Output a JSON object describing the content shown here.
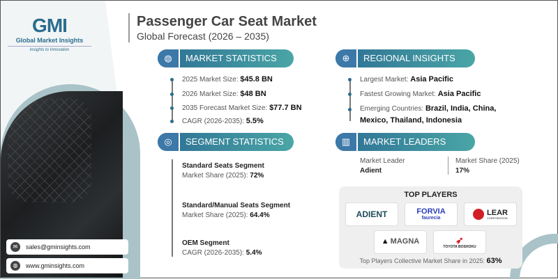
{
  "logo": {
    "mark": "GMI",
    "name": "Global Market Insights",
    "tagline": "Insights to Innovation"
  },
  "header": {
    "title": "Passenger Car Seat Market",
    "subtitle": "Global Forecast (2026 – 2035)"
  },
  "market_statistics": {
    "heading": "MARKET STATISTICS",
    "icon": "globe-chart-icon",
    "items": [
      {
        "label": "2025 Market Size: ",
        "value": "$45.8 BN"
      },
      {
        "label": "2026 Market Size: ",
        "value": "$48 BN"
      },
      {
        "label": "2035 Forecast Market Size: ",
        "value": "$77.7 BN"
      },
      {
        "label": "CAGR (2026-2035): ",
        "value": "5.5%"
      }
    ]
  },
  "segment_statistics": {
    "heading": "SEGMENT STATISTICS",
    "icon": "target-icon",
    "items": [
      {
        "title": "Standard Seats Segment",
        "label": "Market Share (2025): ",
        "value": "72%"
      },
      {
        "title": "Standard/Manual Seats Segment",
        "label": "Market Share (2025): ",
        "value": "64.4%"
      },
      {
        "title": "OEM Segment",
        "label": "CAGR (2026-2035): ",
        "value": "5.4%"
      }
    ]
  },
  "regional_insights": {
    "heading": "REGIONAL INSIGHTS",
    "icon": "globe-icon",
    "items": [
      {
        "label": "Largest Market: ",
        "value": "Asia Pacific"
      },
      {
        "label": "Fastest Growing Market: ",
        "value": "Asia Pacific"
      },
      {
        "label": "Emerging Countries: ",
        "value": "Brazil, India, China,",
        "value2": "Mexico, Thailand, Indonesia"
      }
    ]
  },
  "market_leaders": {
    "heading": "MARKET LEADERS",
    "icon": "building-chart-icon",
    "leader_label": "Market Leader",
    "leader": "Adient",
    "share_label": "Market Share (2025)",
    "share": "17%"
  },
  "top_players": {
    "heading": "TOP PLAYERS",
    "logos": [
      "ADIENT",
      "FORVIA",
      "faurecia",
      "LEAR",
      "CORPORATION",
      "MAGNA",
      "TOYOTA BOSHOKU"
    ],
    "footer_label": "Top Players Collective Market Share in 2025: ",
    "footer_value": "63%"
  },
  "contact": {
    "email": "sales@gminsights.com",
    "website": "www.gminsights.com"
  },
  "colors": {
    "accent": "#2d6f94",
    "teal": "#4aa6a6"
  }
}
